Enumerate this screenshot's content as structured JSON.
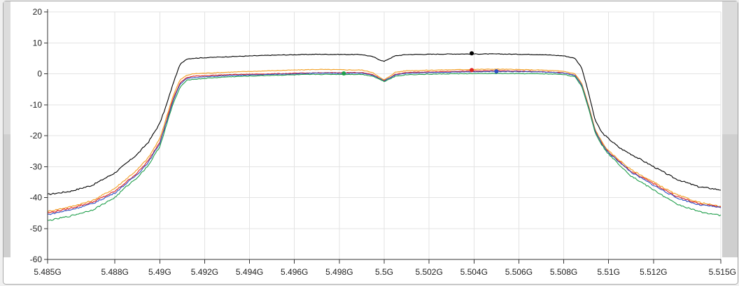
{
  "colors": {
    "background": "#f0f0f0",
    "plot_background": "#ffffff",
    "grid": "#e3e3e3"
  },
  "chart_data": {
    "type": "line",
    "title": "",
    "xlabel": "",
    "ylabel": "",
    "xlim": [
      5.485,
      5.515
    ],
    "ylim": [
      -60,
      20
    ],
    "grid": true,
    "legend": "none",
    "x_ticks": [
      5.485,
      5.488,
      5.49,
      5.492,
      5.494,
      5.496,
      5.498,
      5.5,
      5.502,
      5.504,
      5.506,
      5.508,
      5.51,
      5.512,
      5.515
    ],
    "x_tick_labels": [
      "5.485G",
      "5.488G",
      "5.49G",
      "5.492G",
      "5.494G",
      "5.496G",
      "5.498G",
      "5.5G",
      "5.502G",
      "5.504G",
      "5.506G",
      "5.508G",
      "5.51G",
      "5.512G",
      "5.515G"
    ],
    "y_ticks": [
      20,
      10,
      0,
      -10,
      -20,
      -30,
      -40,
      -50,
      -60
    ],
    "y_tick_labels": [
      "20",
      "10",
      "0",
      "-10",
      "-20",
      "-30",
      "-40",
      "-50",
      "-60"
    ],
    "series": [
      {
        "color": "#000000",
        "x": [
          5.485,
          5.486,
          5.487,
          5.488,
          5.4885,
          5.489,
          5.4895,
          5.49,
          5.4903,
          5.4906,
          5.4909,
          5.4912,
          5.4915,
          5.492,
          5.493,
          5.495,
          5.497,
          5.499,
          5.4995,
          5.4998,
          5.5,
          5.5002,
          5.5005,
          5.501,
          5.503,
          5.505,
          5.507,
          5.508,
          5.5085,
          5.5088,
          5.5091,
          5.5094,
          5.5097,
          5.51,
          5.5105,
          5.511,
          5.512,
          5.513,
          5.514,
          5.515
        ],
        "y": [
          -39,
          -38,
          -36,
          -32,
          -29,
          -26,
          -22,
          -16,
          -10,
          -3,
          3,
          4.8,
          5,
          5.2,
          5.5,
          6,
          6.3,
          6.2,
          5.5,
          4.5,
          4,
          4.8,
          5.8,
          6.2,
          6.4,
          6.4,
          6.2,
          5.8,
          5,
          2,
          -6,
          -15,
          -19,
          -21,
          -24,
          -26,
          -30,
          -34,
          -36.5,
          -37.5
        ],
        "marker": {
          "x": 5.5039,
          "y": 6.6
        }
      },
      {
        "color": "#f29e1f",
        "x": [
          5.485,
          5.486,
          5.487,
          5.488,
          5.4885,
          5.489,
          5.4895,
          5.49,
          5.4903,
          5.4906,
          5.4909,
          5.4912,
          5.4915,
          5.492,
          5.493,
          5.495,
          5.497,
          5.499,
          5.4995,
          5.4998,
          5.5,
          5.5002,
          5.5005,
          5.501,
          5.503,
          5.505,
          5.507,
          5.508,
          5.5085,
          5.5088,
          5.5091,
          5.5094,
          5.5097,
          5.51,
          5.5105,
          5.511,
          5.512,
          5.513,
          5.514,
          5.515
        ],
        "y": [
          -44.5,
          -43,
          -41,
          -37,
          -34,
          -31,
          -27,
          -21,
          -14,
          -7,
          -2,
          -0.5,
          0,
          0.2,
          0.5,
          1,
          1.4,
          1.2,
          0.4,
          -1.2,
          -2,
          -1,
          0.5,
          1,
          1.3,
          1.5,
          1.2,
          0.8,
          0,
          -3,
          -10,
          -18,
          -22,
          -25,
          -28,
          -31,
          -35,
          -39,
          -41.5,
          -43
        ],
        "marker": null
      },
      {
        "color": "#e02424",
        "x": [
          5.485,
          5.486,
          5.487,
          5.488,
          5.4885,
          5.489,
          5.4895,
          5.49,
          5.4903,
          5.4906,
          5.4909,
          5.4912,
          5.4915,
          5.492,
          5.493,
          5.495,
          5.497,
          5.499,
          5.4995,
          5.4998,
          5.5,
          5.5002,
          5.5005,
          5.501,
          5.503,
          5.505,
          5.507,
          5.508,
          5.5085,
          5.5088,
          5.5091,
          5.5094,
          5.5097,
          5.51,
          5.5105,
          5.511,
          5.512,
          5.513,
          5.514,
          5.515
        ],
        "y": [
          -45,
          -43.5,
          -41.5,
          -38,
          -35,
          -32,
          -28,
          -22,
          -15,
          -8,
          -3,
          -1.2,
          -0.8,
          -0.6,
          -0.3,
          0,
          0.3,
          0.4,
          -0.3,
          -1.5,
          -2.2,
          -1.4,
          -0.2,
          0.4,
          0.8,
          1,
          0.7,
          0.3,
          -0.5,
          -3.5,
          -10.5,
          -18.5,
          -22.5,
          -25.5,
          -28.5,
          -31.5,
          -35.5,
          -39.5,
          -42,
          -43
        ],
        "marker": {
          "x": 5.5039,
          "y": 1.2
        }
      },
      {
        "color": "#2f4fc4",
        "x": [
          5.485,
          5.486,
          5.487,
          5.488,
          5.4885,
          5.489,
          5.4895,
          5.49,
          5.4903,
          5.4906,
          5.4909,
          5.4912,
          5.4915,
          5.492,
          5.493,
          5.495,
          5.497,
          5.499,
          5.4995,
          5.4998,
          5.5,
          5.5002,
          5.5005,
          5.501,
          5.503,
          5.505,
          5.507,
          5.508,
          5.5085,
          5.5088,
          5.5091,
          5.5094,
          5.5097,
          5.51,
          5.5105,
          5.511,
          5.512,
          5.513,
          5.514,
          5.515
        ],
        "y": [
          -45.5,
          -44,
          -42,
          -38.5,
          -35.5,
          -32.5,
          -28.5,
          -22.5,
          -15.5,
          -8.5,
          -3.5,
          -1.5,
          -1.2,
          -1,
          -0.6,
          -0.2,
          0.2,
          0.2,
          -0.5,
          -1.6,
          -2.3,
          -1.5,
          -0.4,
          0.2,
          0.5,
          0.8,
          0.6,
          0.2,
          -0.6,
          -3.6,
          -10.6,
          -18.6,
          -22.6,
          -25.6,
          -28.6,
          -31.8,
          -36,
          -40,
          -42.3,
          -43.2
        ],
        "marker": {
          "x": 5.505,
          "y": 0.8
        }
      },
      {
        "color": "#1e9e4a",
        "x": [
          5.485,
          5.486,
          5.487,
          5.488,
          5.4885,
          5.489,
          5.4895,
          5.49,
          5.4903,
          5.4906,
          5.4909,
          5.4912,
          5.4915,
          5.492,
          5.493,
          5.495,
          5.497,
          5.499,
          5.4995,
          5.4998,
          5.5,
          5.5002,
          5.5005,
          5.501,
          5.503,
          5.505,
          5.507,
          5.508,
          5.5085,
          5.5088,
          5.5091,
          5.5094,
          5.5097,
          5.51,
          5.5105,
          5.511,
          5.512,
          5.513,
          5.514,
          5.515
        ],
        "y": [
          -47.5,
          -46,
          -44,
          -40,
          -36.5,
          -33.5,
          -29.5,
          -23.5,
          -16.5,
          -9.5,
          -4.5,
          -2,
          -1.8,
          -1.5,
          -1,
          -0.5,
          -0.2,
          -0.2,
          -0.8,
          -1.8,
          -2.5,
          -1.8,
          -0.8,
          -0.3,
          0,
          0.1,
          0,
          -0.2,
          -1,
          -4,
          -11,
          -19,
          -23,
          -26,
          -29.5,
          -33,
          -37.5,
          -42,
          -44.5,
          -45.8
        ],
        "marker": {
          "x": 5.4982,
          "y": 0.1
        }
      }
    ]
  }
}
